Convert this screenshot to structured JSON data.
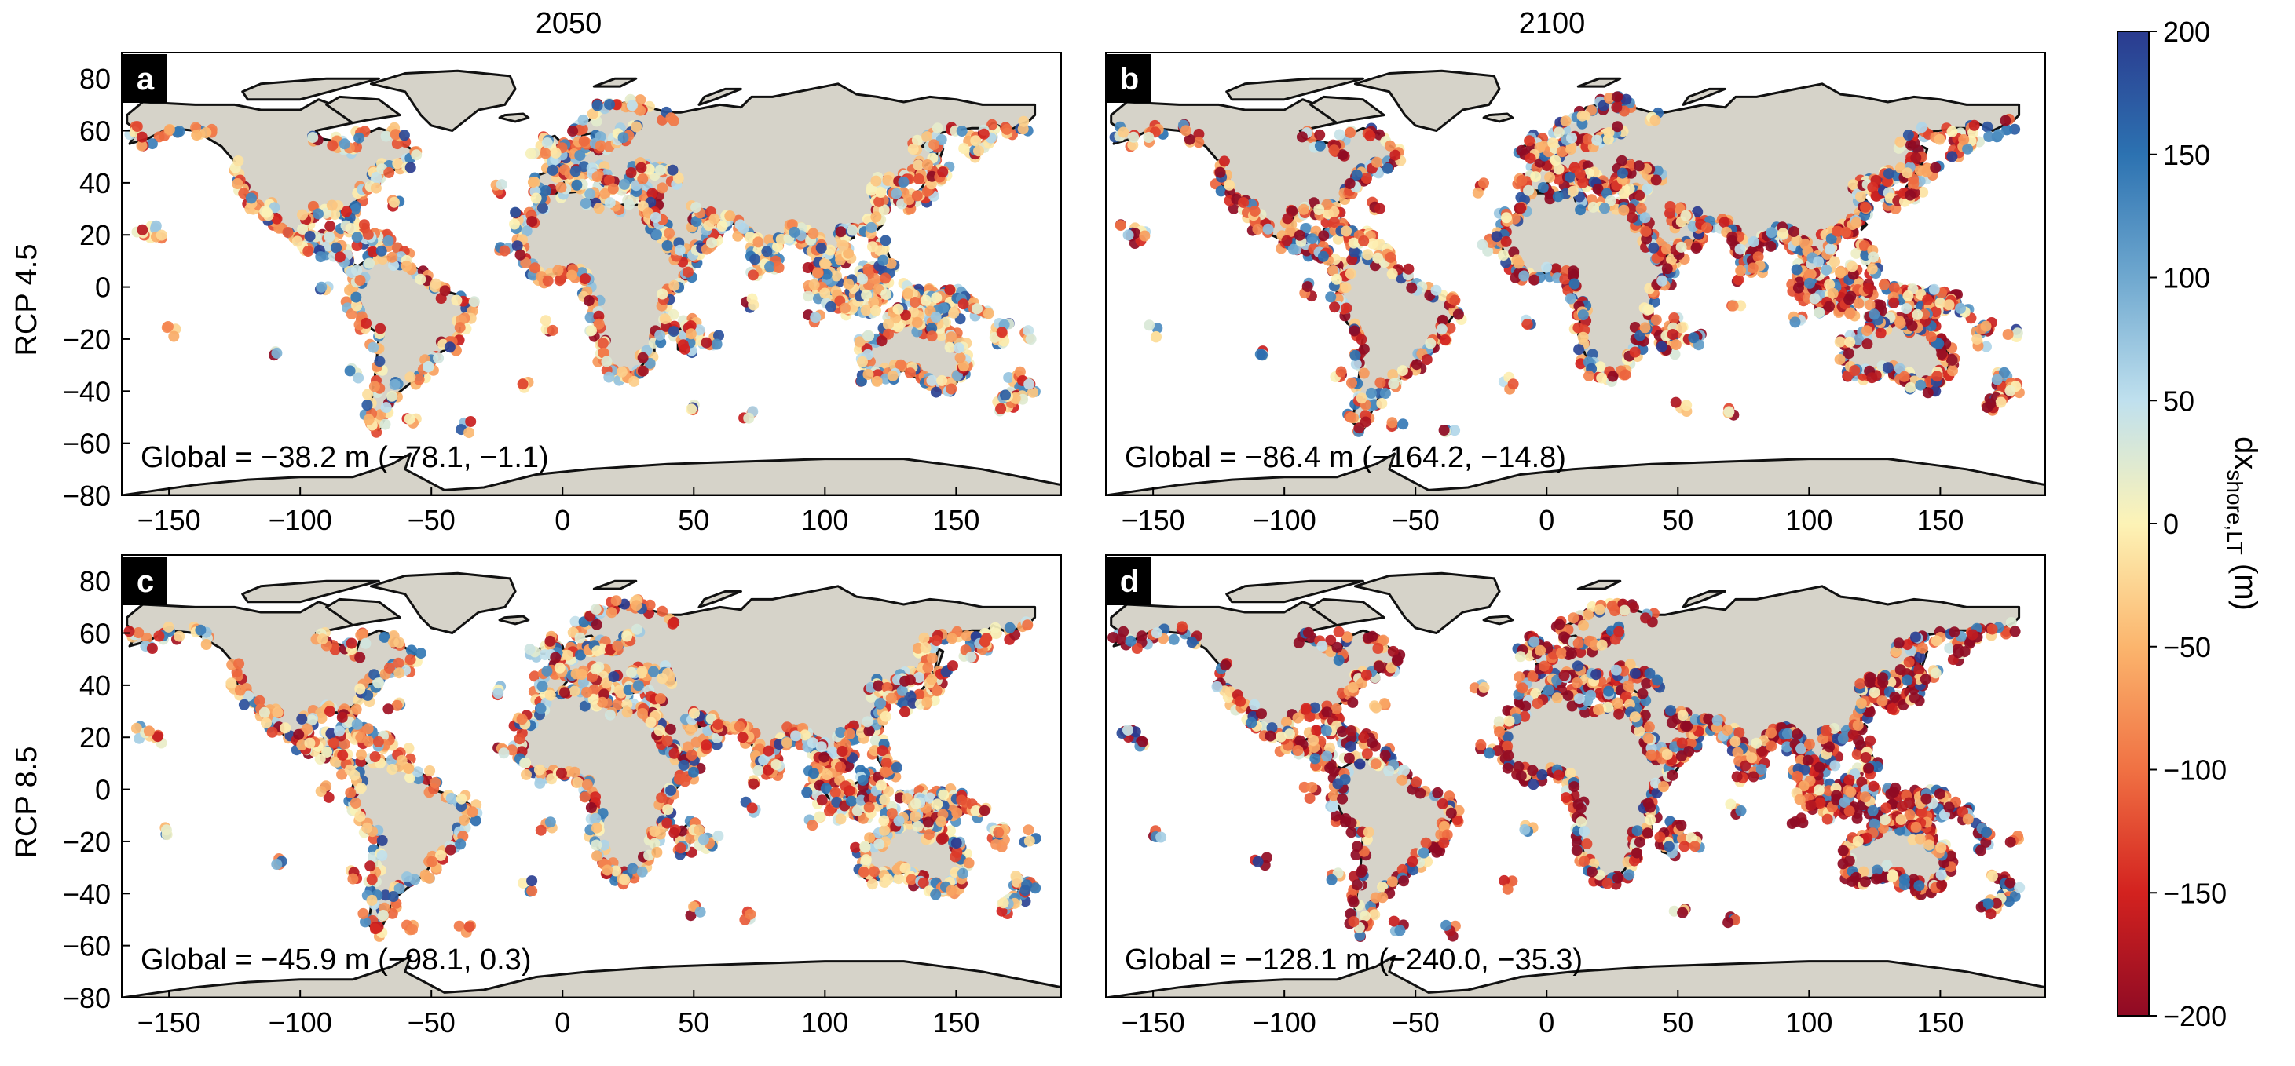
{
  "figure": {
    "column_titles": [
      "2050",
      "2100"
    ],
    "row_titles": [
      "RCP 4.5",
      "RCP 8.5"
    ],
    "colorbar": {
      "label_main": "dx",
      "label_sub": "shore,LT",
      "label_unit": " (m)",
      "min": -200,
      "max": 200,
      "ticks": [
        "200",
        "150",
        "100",
        "50",
        "0",
        "−50",
        "−100",
        "−150",
        "−200"
      ],
      "colors": [
        "#2b3b8f",
        "#2c72b1",
        "#6fa8cf",
        "#bfe0ee",
        "#fdf3b6",
        "#fbb56d",
        "#f07143",
        "#d3221f",
        "#8f0b24"
      ]
    }
  },
  "chart_data": [
    {
      "type": "map",
      "panel": "a",
      "column": "2050",
      "row": "RCP 4.5",
      "annotation": "Global = −38.2 m (−78.1, −1.1)",
      "xticks": [
        "−150",
        "−100",
        "−50",
        "0",
        "50",
        "100",
        "150"
      ],
      "yticks": [
        "80",
        "60",
        "40",
        "20",
        "0",
        "−20",
        "−40",
        "−60",
        "−80"
      ],
      "xlim": [
        -168,
        190
      ],
      "ylim": [
        -80,
        90
      ],
      "mean_dx": -38.2
    },
    {
      "type": "map",
      "panel": "b",
      "column": "2100",
      "row": "RCP 4.5",
      "annotation": "Global = −86.4 m (−164.2, −14.8)",
      "xticks": [
        "−150",
        "−100",
        "−50",
        "0",
        "50",
        "100",
        "150"
      ],
      "yticks": [],
      "xlim": [
        -168,
        190
      ],
      "ylim": [
        -80,
        90
      ],
      "mean_dx": -86.4
    },
    {
      "type": "map",
      "panel": "c",
      "column": "2050",
      "row": "RCP 8.5",
      "annotation": "Global = −45.9 m (−98.1, 0.3)",
      "xticks": [
        "−150",
        "−100",
        "−50",
        "0",
        "50",
        "100",
        "150"
      ],
      "yticks": [
        "80",
        "60",
        "40",
        "20",
        "0",
        "−20",
        "−40",
        "−60",
        "−80"
      ],
      "xlim": [
        -168,
        190
      ],
      "ylim": [
        -80,
        90
      ],
      "mean_dx": -45.9
    },
    {
      "type": "map",
      "panel": "d",
      "column": "2100",
      "row": "RCP 8.5",
      "annotation": "Global = −128.1 m (−240.0, −35.3)",
      "xticks": [
        "−150",
        "−100",
        "−50",
        "0",
        "50",
        "100",
        "150"
      ],
      "yticks": [],
      "xlim": [
        -168,
        190
      ],
      "ylim": [
        -80,
        90
      ],
      "mean_dx": -128.1
    }
  ]
}
